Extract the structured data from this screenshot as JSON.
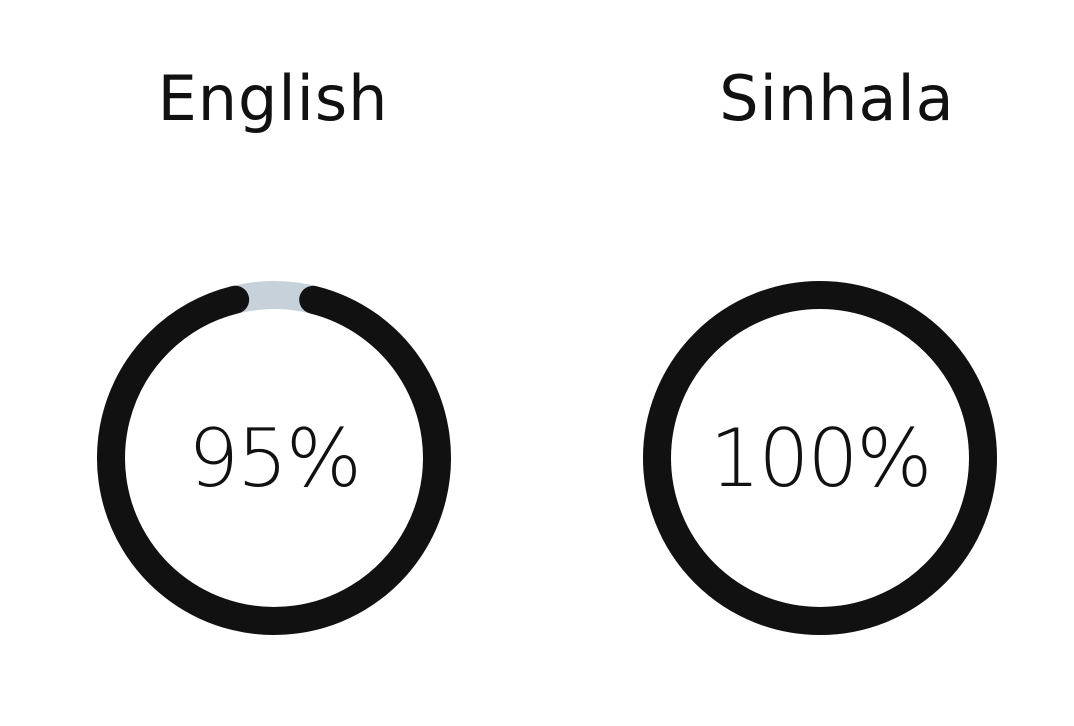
{
  "languages": [
    {
      "name": "English",
      "percent_label": "95%",
      "progress": 0.95
    },
    {
      "name": "Sinhala",
      "percent_label": "100%",
      "progress": 1.0
    }
  ],
  "colors": {
    "ring_fill": "#111111",
    "ring_track": "#c7d1da",
    "text": "#111111",
    "background": "#ffffff"
  }
}
